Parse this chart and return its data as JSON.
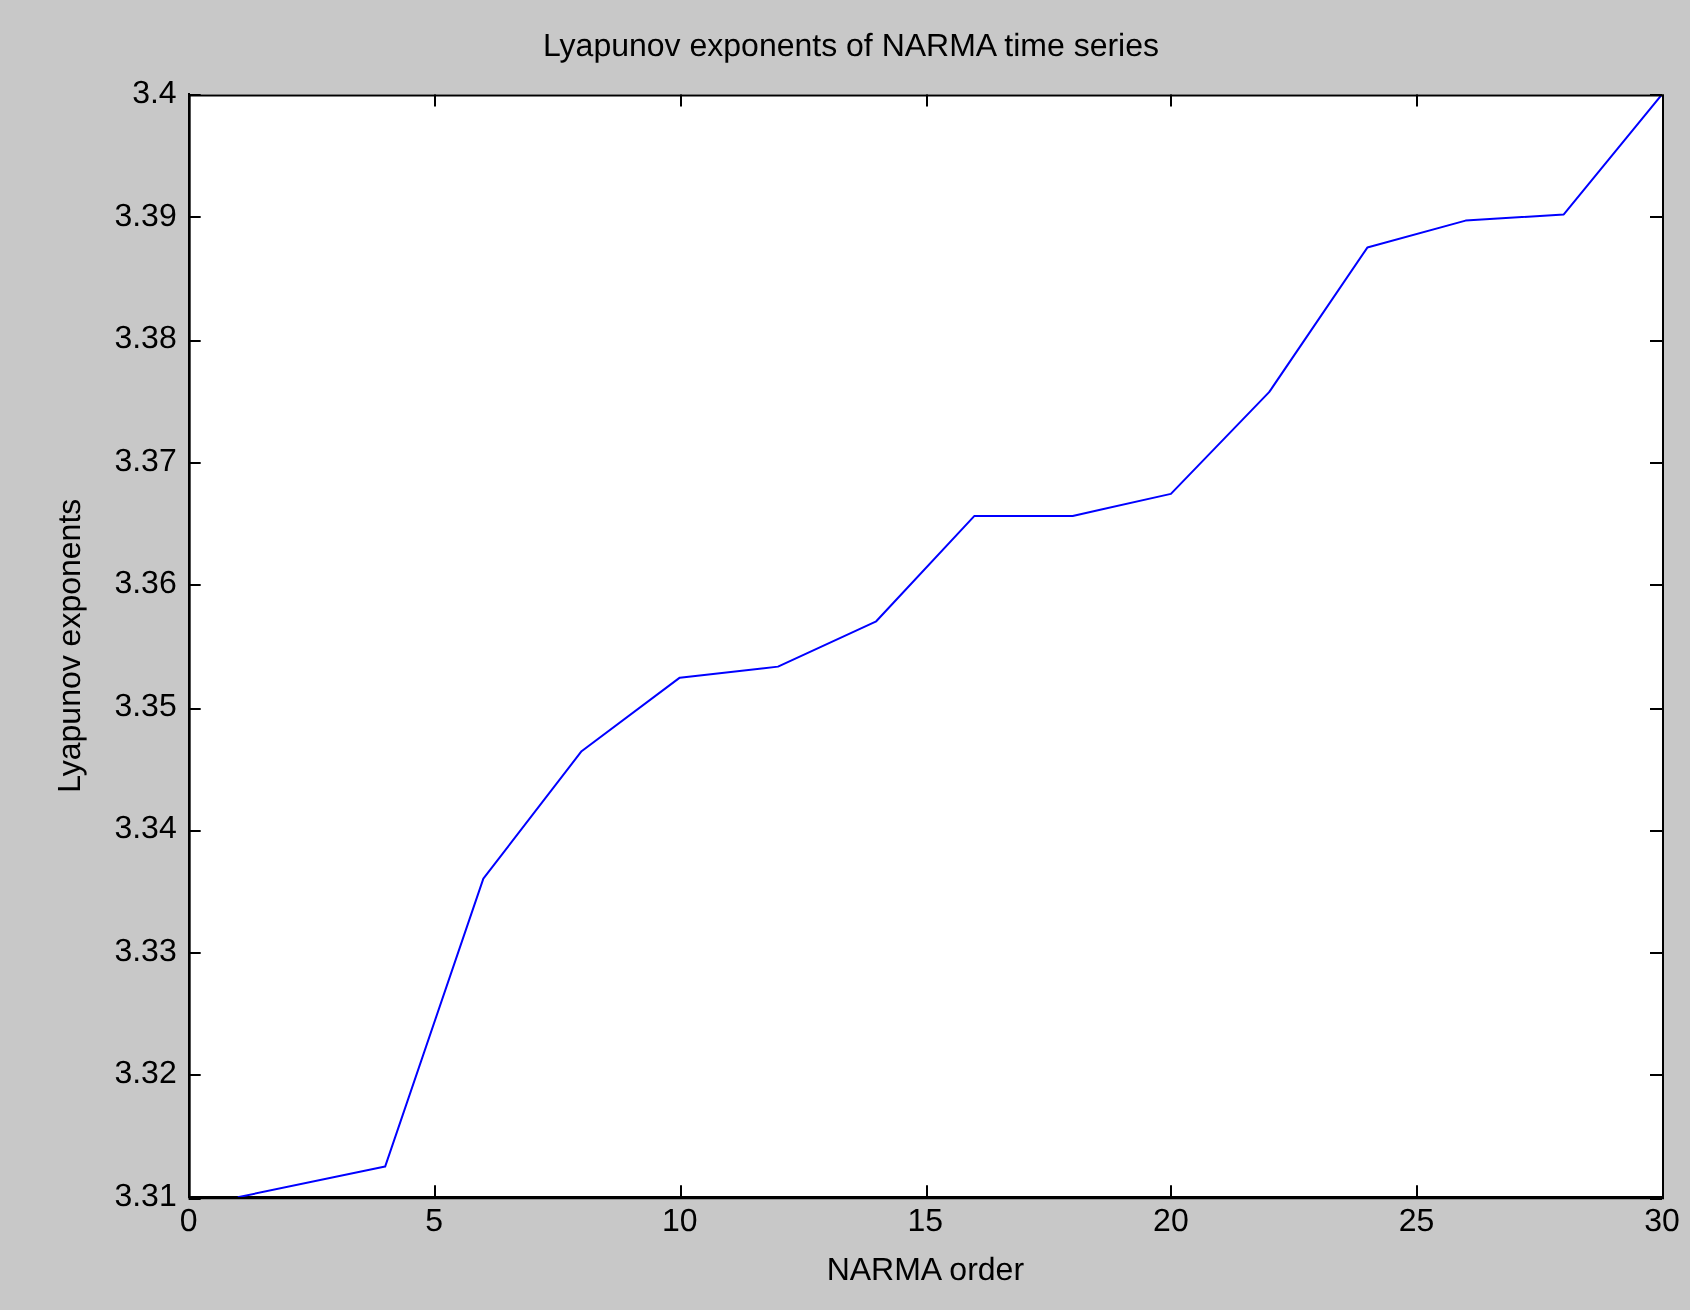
{
  "chart_data": {
    "type": "line",
    "title": "Lyapunov exponents of NARMA time series",
    "xlabel": "NARMA order",
    "ylabel": "Lyapunov exponents",
    "x": [
      1,
      4,
      6,
      8,
      10,
      12,
      14,
      16,
      18,
      20,
      22,
      24,
      26,
      28,
      30
    ],
    "series": [
      {
        "color": "#0000ff",
        "values": [
          3.31,
          3.3125,
          3.336,
          3.3464,
          3.3524,
          3.3533,
          3.357,
          3.3656,
          3.3656,
          3.3674,
          3.3757,
          3.3875,
          3.3897,
          3.3902,
          3.4
        ]
      }
    ],
    "xlim": [
      0,
      30
    ],
    "xticks": [
      0,
      5,
      10,
      15,
      20,
      25,
      30
    ],
    "ylim": [
      3.31,
      3.4
    ],
    "yticks": [
      3.31,
      3.32,
      3.33,
      3.34,
      3.35,
      3.36,
      3.37,
      3.38,
      3.39,
      3.4
    ],
    "grid": false,
    "legend": false,
    "marker": "none",
    "line_style": "solid"
  }
}
